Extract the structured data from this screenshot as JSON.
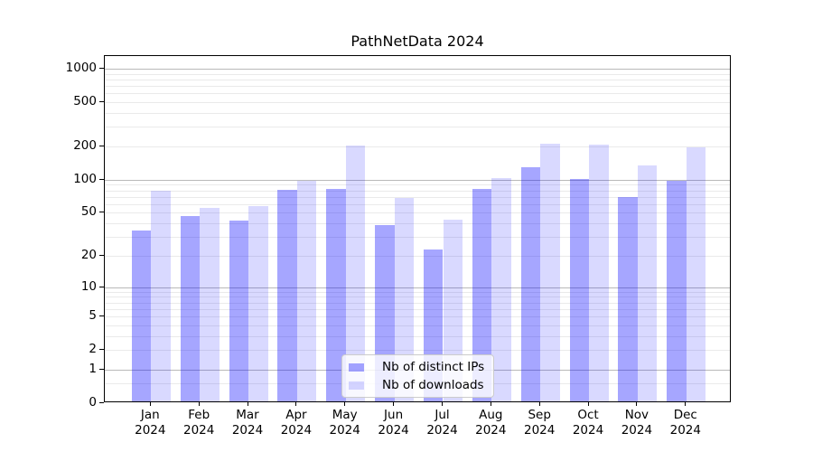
{
  "chart_data": {
    "type": "bar",
    "title": "PathNetData 2024",
    "categories": [
      "Jan 2024",
      "Feb 2024",
      "Mar 2024",
      "Apr 2024",
      "May 2024",
      "Jun 2024",
      "Jul 2024",
      "Aug 2024",
      "Sep 2024",
      "Oct 2024",
      "Nov 2024",
      "Dec 2024"
    ],
    "series": [
      {
        "name": "Nb of distinct IPs",
        "color": "rgba(0,0,255,0.35)",
        "values": [
          33,
          45,
          41,
          78,
          79,
          37,
          22,
          79,
          125,
          97,
          67,
          94
        ]
      },
      {
        "name": "Nb of downloads",
        "color": "rgba(0,0,255,0.15)",
        "values": [
          77,
          53,
          55,
          95,
          196,
          66,
          42,
          99,
          203,
          199,
          130,
          190
        ]
      }
    ],
    "y_ticks": [
      0,
      1,
      2,
      5,
      10,
      20,
      50,
      100,
      200,
      500,
      1000
    ],
    "y_scale": "log10(value+1)",
    "ylim": [
      0,
      1300
    ],
    "xlabel": "",
    "ylabel": "",
    "grid": true,
    "legend_position": "lower-center",
    "colors": {
      "major_grid": "#b9b9b9",
      "minor_grid": "#eaeaea",
      "spine": "#000000"
    }
  }
}
